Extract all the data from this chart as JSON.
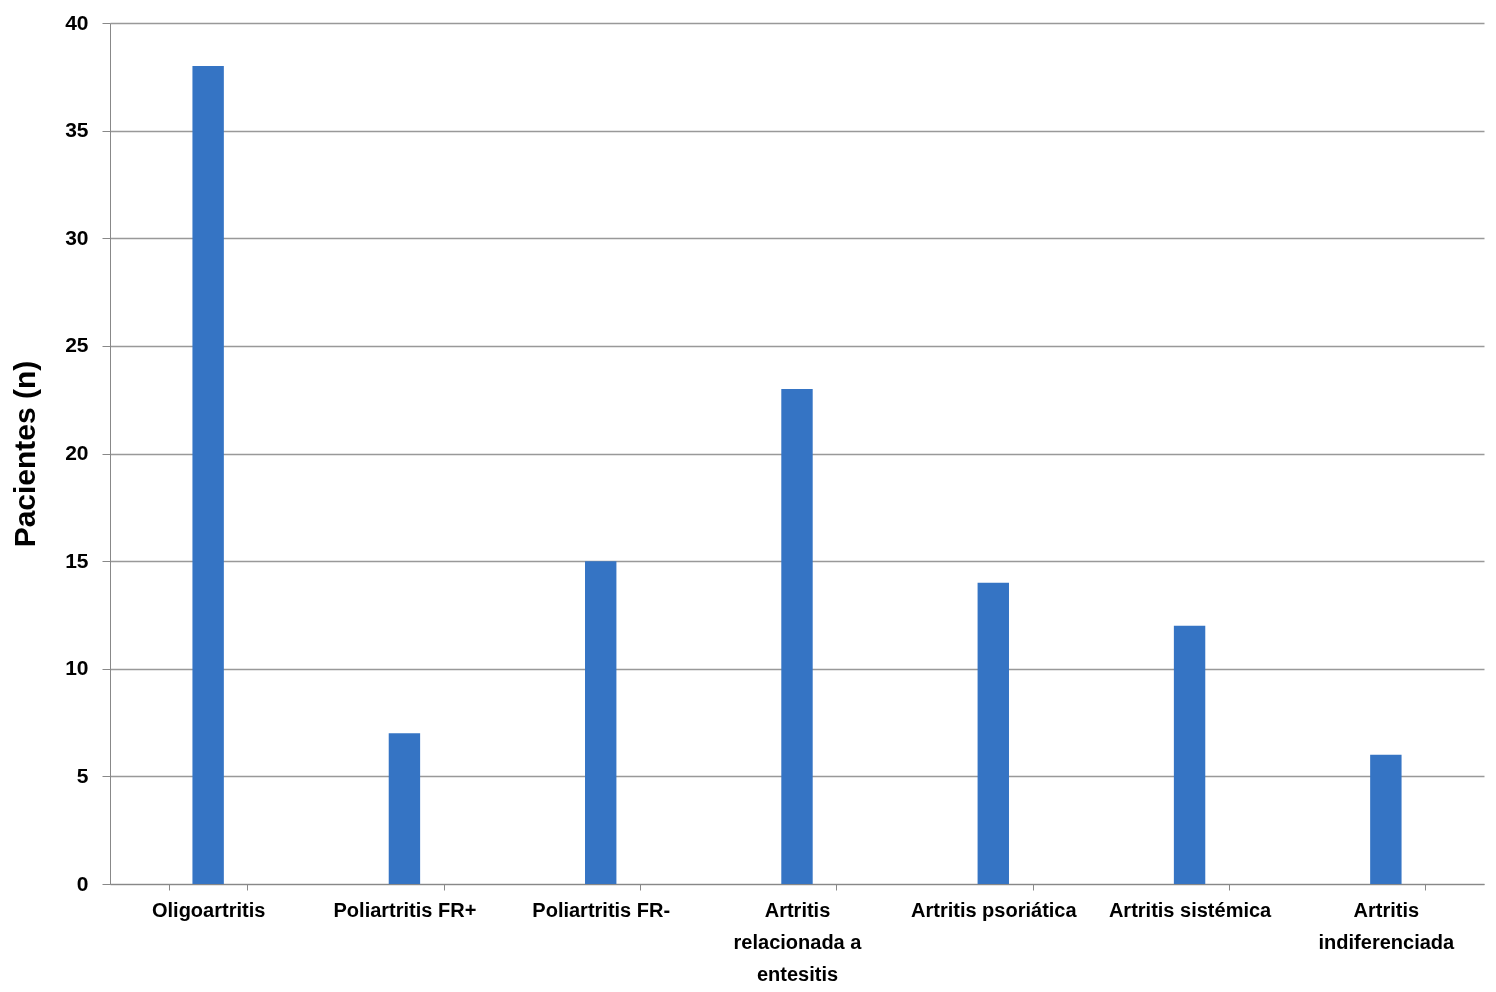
{
  "chart_data": {
    "type": "bar",
    "ylabel": "Pacientes (n)",
    "categories": [
      "Oligoartritis",
      "Poliartritis FR+",
      "Poliartritis FR-",
      "Artritis relacionada a entesitis",
      "Artritis psoriática",
      "Artritis sistémica",
      "Artritis indiferenciada"
    ],
    "values": [
      38,
      7,
      15,
      23,
      14,
      12,
      6
    ],
    "color": "#3574c4",
    "ylim": [
      0,
      40
    ],
    "yticks": [
      0,
      5,
      10,
      15,
      20,
      25,
      30,
      35,
      40
    ],
    "grid": "y"
  }
}
